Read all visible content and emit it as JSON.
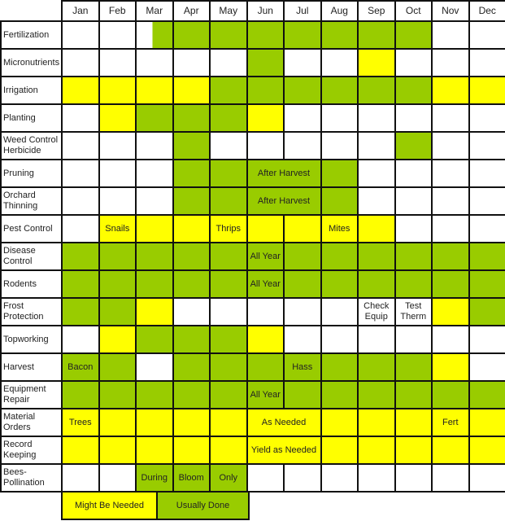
{
  "colors": {
    "usually_done": "#99cc00",
    "might_be_needed": "#ffff00",
    "not_done": "#ffffff"
  },
  "chart_data": {
    "type": "table",
    "months": [
      "Jan",
      "Feb",
      "Mar",
      "Apr",
      "May",
      "Jun",
      "Jul",
      "Aug",
      "Sep",
      "Oct",
      "Nov",
      "Dec"
    ],
    "legend": [
      {
        "code": "Y",
        "label": "Might Be Needed"
      },
      {
        "code": "G",
        "label": "Usually Done"
      }
    ],
    "rows": [
      {
        "task": "Fertilization",
        "cells": [
          {
            "c": "W"
          },
          {
            "c": "W"
          },
          {
            "c": "WG"
          },
          {
            "c": "G"
          },
          {
            "c": "G"
          },
          {
            "c": "G"
          },
          {
            "c": "G"
          },
          {
            "c": "G"
          },
          {
            "c": "G"
          },
          {
            "c": "G"
          },
          {
            "c": "W"
          },
          {
            "c": "W"
          }
        ]
      },
      {
        "task": "Micronutrients",
        "cells": [
          {
            "c": "W"
          },
          {
            "c": "W"
          },
          {
            "c": "W"
          },
          {
            "c": "W"
          },
          {
            "c": "W"
          },
          {
            "c": "G"
          },
          {
            "c": "W"
          },
          {
            "c": "W"
          },
          {
            "c": "Y"
          },
          {
            "c": "W"
          },
          {
            "c": "W"
          },
          {
            "c": "W"
          }
        ]
      },
      {
        "task": "Irrigation",
        "cells": [
          {
            "c": "Y"
          },
          {
            "c": "Y"
          },
          {
            "c": "Y"
          },
          {
            "c": "Y"
          },
          {
            "c": "G"
          },
          {
            "c": "G"
          },
          {
            "c": "G"
          },
          {
            "c": "G"
          },
          {
            "c": "G"
          },
          {
            "c": "G"
          },
          {
            "c": "Y"
          },
          {
            "c": "Y"
          }
        ]
      },
      {
        "task": "Planting",
        "cells": [
          {
            "c": "W"
          },
          {
            "c": "Y"
          },
          {
            "c": "G"
          },
          {
            "c": "G"
          },
          {
            "c": "G"
          },
          {
            "c": "Y"
          },
          {
            "c": "W"
          },
          {
            "c": "W"
          },
          {
            "c": "W"
          },
          {
            "c": "W"
          },
          {
            "c": "W"
          },
          {
            "c": "W"
          }
        ]
      },
      {
        "task": "Weed Control Herbicide",
        "cells": [
          {
            "c": "W"
          },
          {
            "c": "W"
          },
          {
            "c": "W"
          },
          {
            "c": "G"
          },
          {
            "c": "W"
          },
          {
            "c": "W"
          },
          {
            "c": "W"
          },
          {
            "c": "W"
          },
          {
            "c": "W"
          },
          {
            "c": "G"
          },
          {
            "c": "W"
          },
          {
            "c": "W"
          }
        ]
      },
      {
        "task": "Pruning",
        "cells": [
          {
            "c": "W"
          },
          {
            "c": "W"
          },
          {
            "c": "W"
          },
          {
            "c": "G"
          },
          {
            "c": "G"
          },
          {
            "c": "G",
            "t": "After Harvest",
            "span": 2
          },
          {
            "c": "G"
          },
          {
            "c": "W"
          },
          {
            "c": "W"
          },
          {
            "c": "W"
          },
          {
            "c": "W"
          }
        ]
      },
      {
        "task": "Orchard Thinning",
        "cells": [
          {
            "c": "W"
          },
          {
            "c": "W"
          },
          {
            "c": "W"
          },
          {
            "c": "G"
          },
          {
            "c": "G"
          },
          {
            "c": "G",
            "t": "After Harvest",
            "span": 2
          },
          {
            "c": "G"
          },
          {
            "c": "W"
          },
          {
            "c": "W"
          },
          {
            "c": "W"
          },
          {
            "c": "W"
          }
        ]
      },
      {
        "task": "Pest Control",
        "cells": [
          {
            "c": "W"
          },
          {
            "c": "Y",
            "t": "Snails"
          },
          {
            "c": "Y"
          },
          {
            "c": "Y"
          },
          {
            "c": "Y",
            "t": "Thrips"
          },
          {
            "c": "Y"
          },
          {
            "c": "Y"
          },
          {
            "c": "Y",
            "t": "Mites"
          },
          {
            "c": "Y"
          },
          {
            "c": "W"
          },
          {
            "c": "W"
          },
          {
            "c": "W"
          }
        ]
      },
      {
        "task": "Disease Control",
        "cells": [
          {
            "c": "G"
          },
          {
            "c": "G"
          },
          {
            "c": "G"
          },
          {
            "c": "G"
          },
          {
            "c": "G"
          },
          {
            "c": "G",
            "t": "All Year"
          },
          {
            "c": "G"
          },
          {
            "c": "G"
          },
          {
            "c": "G"
          },
          {
            "c": "G"
          },
          {
            "c": "G"
          },
          {
            "c": "G"
          }
        ]
      },
      {
        "task": "Rodents",
        "cells": [
          {
            "c": "G"
          },
          {
            "c": "G"
          },
          {
            "c": "G"
          },
          {
            "c": "G"
          },
          {
            "c": "G"
          },
          {
            "c": "G",
            "t": "All Year"
          },
          {
            "c": "G"
          },
          {
            "c": "G"
          },
          {
            "c": "G"
          },
          {
            "c": "G"
          },
          {
            "c": "G"
          },
          {
            "c": "G"
          }
        ]
      },
      {
        "task": "Frost Protection",
        "cells": [
          {
            "c": "G"
          },
          {
            "c": "G"
          },
          {
            "c": "Y"
          },
          {
            "c": "W"
          },
          {
            "c": "W"
          },
          {
            "c": "W"
          },
          {
            "c": "W"
          },
          {
            "c": "W"
          },
          {
            "c": "W",
            "t": "Check Equip"
          },
          {
            "c": "W",
            "t": "Test Therm"
          },
          {
            "c": "Y"
          },
          {
            "c": "G"
          }
        ]
      },
      {
        "task": "Topworking",
        "cells": [
          {
            "c": "W"
          },
          {
            "c": "Y"
          },
          {
            "c": "G"
          },
          {
            "c": "G"
          },
          {
            "c": "G"
          },
          {
            "c": "Y"
          },
          {
            "c": "W"
          },
          {
            "c": "W"
          },
          {
            "c": "W"
          },
          {
            "c": "W"
          },
          {
            "c": "W"
          },
          {
            "c": "W"
          }
        ]
      },
      {
        "task": "Harvest",
        "cells": [
          {
            "c": "G",
            "t": "Bacon"
          },
          {
            "c": "G"
          },
          {
            "c": "W"
          },
          {
            "c": "G"
          },
          {
            "c": "G"
          },
          {
            "c": "G"
          },
          {
            "c": "G",
            "t": "Hass"
          },
          {
            "c": "G"
          },
          {
            "c": "G"
          },
          {
            "c": "G"
          },
          {
            "c": "Y"
          },
          {
            "c": "W"
          }
        ]
      },
      {
        "task": "Equipment Repair",
        "cells": [
          {
            "c": "G"
          },
          {
            "c": "G"
          },
          {
            "c": "G"
          },
          {
            "c": "G"
          },
          {
            "c": "G"
          },
          {
            "c": "G",
            "t": "All Year"
          },
          {
            "c": "G"
          },
          {
            "c": "G"
          },
          {
            "c": "G"
          },
          {
            "c": "G"
          },
          {
            "c": "G"
          },
          {
            "c": "G"
          }
        ]
      },
      {
        "task": "Material Orders",
        "cells": [
          {
            "c": "Y",
            "t": "Trees"
          },
          {
            "c": "Y"
          },
          {
            "c": "Y"
          },
          {
            "c": "Y"
          },
          {
            "c": "Y"
          },
          {
            "c": "Y",
            "t": "As Needed",
            "span": 2
          },
          {
            "c": "Y"
          },
          {
            "c": "Y"
          },
          {
            "c": "Y"
          },
          {
            "c": "Y",
            "t": "Fert"
          },
          {
            "c": "Y"
          }
        ]
      },
      {
        "task": "Record Keeping",
        "cells": [
          {
            "c": "Y"
          },
          {
            "c": "Y"
          },
          {
            "c": "Y"
          },
          {
            "c": "Y"
          },
          {
            "c": "Y"
          },
          {
            "c": "Y",
            "t": "Yield as Needed",
            "span": 2
          },
          {
            "c": "Y"
          },
          {
            "c": "Y"
          },
          {
            "c": "Y"
          },
          {
            "c": "Y"
          },
          {
            "c": "Y"
          }
        ]
      },
      {
        "task": "Bees-Pollination",
        "cells": [
          {
            "c": "W"
          },
          {
            "c": "W"
          },
          {
            "c": "G",
            "t": "During"
          },
          {
            "c": "G",
            "t": "Bloom"
          },
          {
            "c": "G",
            "t": "Only"
          },
          {
            "c": "W"
          },
          {
            "c": "W"
          },
          {
            "c": "W"
          },
          {
            "c": "W"
          },
          {
            "c": "W"
          },
          {
            "c": "W"
          },
          {
            "c": "W"
          }
        ]
      }
    ]
  }
}
